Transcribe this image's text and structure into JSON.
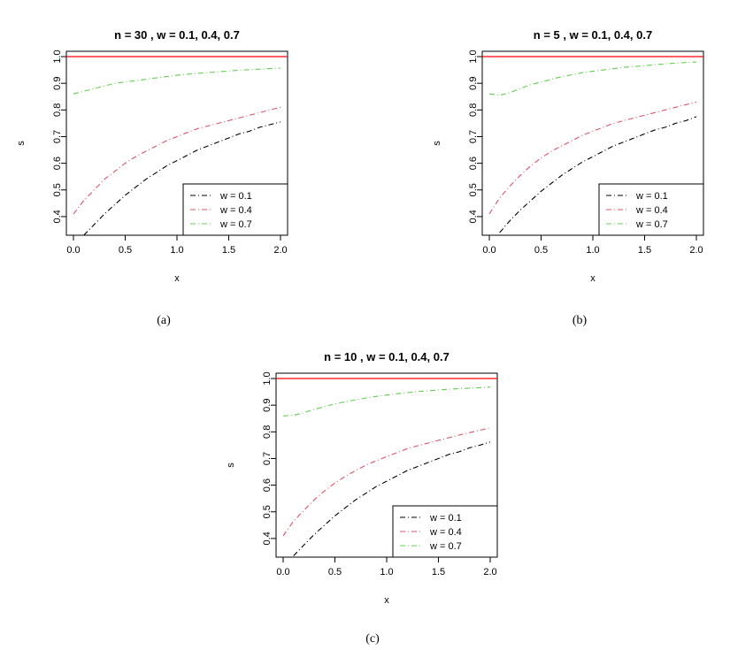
{
  "chart_data": [
    {
      "type": "line",
      "panel_id": "a",
      "caption": "(a)",
      "title": "n = 30 , w = 0.1, 0.4, 0.7",
      "xlabel": "x",
      "ylabel": "s",
      "xlim": [
        0,
        2
      ],
      "ylim": [
        0.33,
        1.02
      ],
      "xticks": [
        "0.0",
        "0.5",
        "1.0",
        "1.5",
        "2.0"
      ],
      "yticks": [
        "0.4",
        "0.5",
        "0.6",
        "0.7",
        "0.8",
        "0.9",
        "1.0"
      ],
      "legend_position": "bottom-right",
      "x": [
        0,
        0.1,
        0.2,
        0.3,
        0.4,
        0.5,
        0.6,
        0.7,
        0.8,
        0.9,
        1.0,
        1.1,
        1.2,
        1.3,
        1.4,
        1.5,
        1.6,
        1.7,
        1.8,
        1.9,
        2.0
      ],
      "reference_line": {
        "y": 1.0,
        "color": "#ff0000"
      },
      "series": [
        {
          "name": "w = 0.1",
          "color": "#000000",
          "values": [
            null,
            0.33,
            0.37,
            0.41,
            0.445,
            0.48,
            0.51,
            0.54,
            0.565,
            0.59,
            0.61,
            0.63,
            0.65,
            0.665,
            0.68,
            0.695,
            0.71,
            0.72,
            0.735,
            0.745,
            0.755
          ]
        },
        {
          "name": "w = 0.4",
          "color": "#df536b",
          "values": [
            0.41,
            0.46,
            0.5,
            0.54,
            0.57,
            0.6,
            0.625,
            0.645,
            0.665,
            0.685,
            0.7,
            0.715,
            0.73,
            0.74,
            0.75,
            0.76,
            0.77,
            0.78,
            0.79,
            0.8,
            0.81
          ]
        },
        {
          "name": "w = 0.7",
          "color": "#61d04f",
          "values": [
            0.86,
            0.87,
            0.88,
            0.89,
            0.9,
            0.905,
            0.91,
            0.915,
            0.92,
            0.925,
            0.93,
            0.934,
            0.937,
            0.94,
            0.943,
            0.946,
            0.949,
            0.951,
            0.953,
            0.955,
            0.957
          ]
        }
      ]
    },
    {
      "type": "line",
      "panel_id": "b",
      "caption": "(b)",
      "title": "n = 5 , w = 0.1, 0.4, 0.7",
      "xlabel": "x",
      "ylabel": "s",
      "xlim": [
        0,
        2
      ],
      "ylim": [
        0.33,
        1.02
      ],
      "xticks": [
        "0.0",
        "0.5",
        "1.0",
        "1.5",
        "2.0"
      ],
      "yticks": [
        "0.4",
        "0.5",
        "0.6",
        "0.7",
        "0.8",
        "0.9",
        "1.0"
      ],
      "legend_position": "bottom-right",
      "x": [
        0,
        0.1,
        0.2,
        0.3,
        0.4,
        0.5,
        0.6,
        0.7,
        0.8,
        0.9,
        1.0,
        1.1,
        1.2,
        1.3,
        1.4,
        1.5,
        1.6,
        1.7,
        1.8,
        1.9,
        2.0
      ],
      "reference_line": {
        "y": 1.0,
        "color": "#ff0000"
      },
      "series": [
        {
          "name": "w = 0.1",
          "color": "#000000",
          "values": [
            null,
            0.34,
            0.385,
            0.425,
            0.46,
            0.495,
            0.525,
            0.555,
            0.58,
            0.605,
            0.625,
            0.645,
            0.665,
            0.68,
            0.695,
            0.71,
            0.725,
            0.735,
            0.75,
            0.76,
            0.775
          ]
        },
        {
          "name": "w = 0.4",
          "color": "#df536b",
          "values": [
            0.41,
            0.47,
            0.515,
            0.555,
            0.59,
            0.62,
            0.645,
            0.665,
            0.685,
            0.705,
            0.72,
            0.735,
            0.75,
            0.76,
            0.77,
            0.78,
            0.79,
            0.8,
            0.81,
            0.82,
            0.83
          ]
        },
        {
          "name": "w = 0.7",
          "color": "#61d04f",
          "values": [
            0.86,
            0.855,
            0.865,
            0.88,
            0.895,
            0.905,
            0.915,
            0.925,
            0.932,
            0.94,
            0.945,
            0.95,
            0.955,
            0.96,
            0.963,
            0.966,
            0.97,
            0.973,
            0.976,
            0.978,
            0.98
          ]
        }
      ]
    },
    {
      "type": "line",
      "panel_id": "c",
      "caption": "(c)",
      "title": "n = 10 , w = 0.1, 0.4, 0.7",
      "xlabel": "x",
      "ylabel": "s",
      "xlim": [
        0,
        2
      ],
      "ylim": [
        0.33,
        1.02
      ],
      "xticks": [
        "0.0",
        "0.5",
        "1.0",
        "1.5",
        "2.0"
      ],
      "yticks": [
        "0.4",
        "0.5",
        "0.6",
        "0.7",
        "0.8",
        "0.9",
        "1.0"
      ],
      "legend_position": "bottom-right",
      "x": [
        0,
        0.1,
        0.2,
        0.3,
        0.4,
        0.5,
        0.6,
        0.7,
        0.8,
        0.9,
        1.0,
        1.1,
        1.2,
        1.3,
        1.4,
        1.5,
        1.6,
        1.7,
        1.8,
        1.9,
        2.0
      ],
      "reference_line": {
        "y": 1.0,
        "color": "#ff0000"
      },
      "series": [
        {
          "name": "w = 0.1",
          "color": "#000000",
          "values": [
            null,
            0.335,
            0.375,
            0.415,
            0.45,
            0.485,
            0.515,
            0.545,
            0.57,
            0.595,
            0.615,
            0.635,
            0.655,
            0.67,
            0.685,
            0.7,
            0.715,
            0.725,
            0.74,
            0.75,
            0.762
          ]
        },
        {
          "name": "w = 0.4",
          "color": "#df536b",
          "values": [
            0.41,
            0.465,
            0.505,
            0.545,
            0.578,
            0.608,
            0.633,
            0.655,
            0.675,
            0.692,
            0.707,
            0.722,
            0.737,
            0.748,
            0.758,
            0.768,
            0.778,
            0.788,
            0.797,
            0.806,
            0.815
          ]
        },
        {
          "name": "w = 0.7",
          "color": "#61d04f",
          "values": [
            0.86,
            0.862,
            0.872,
            0.884,
            0.895,
            0.905,
            0.913,
            0.92,
            0.927,
            0.933,
            0.938,
            0.943,
            0.947,
            0.951,
            0.954,
            0.957,
            0.96,
            0.962,
            0.964,
            0.966,
            0.968
          ]
        }
      ]
    }
  ]
}
